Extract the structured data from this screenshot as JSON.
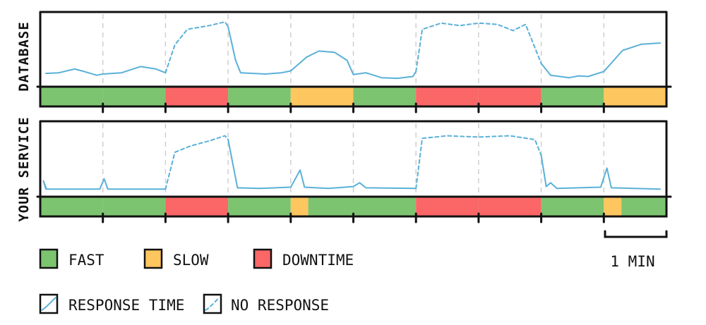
{
  "panels": [
    {
      "id": "database",
      "label": "DATABASE",
      "status_strip": [
        "fast",
        "fast",
        "downtime",
        "fast",
        "slow",
        "fast",
        "downtime",
        "downtime",
        "fast",
        "slow"
      ],
      "response_time": [
        [
          0.0,
          0.09
        ],
        [
          0.3,
          0.1
        ],
        [
          0.55,
          0.16
        ],
        [
          0.7,
          0.12
        ],
        [
          0.9,
          0.06
        ],
        [
          1.0,
          0.08
        ],
        [
          1.3,
          0.1
        ],
        [
          1.6,
          0.2
        ],
        [
          1.85,
          0.16
        ],
        [
          2.0,
          0.1
        ]
      ],
      "no_response": [
        [
          2.0,
          0.1
        ],
        [
          2.15,
          0.55
        ],
        [
          2.35,
          0.8
        ],
        [
          2.7,
          0.86
        ],
        [
          2.95,
          0.92
        ],
        [
          3.0,
          0.84
        ]
      ],
      "response_time_2": [
        [
          3.0,
          0.84
        ],
        [
          3.12,
          0.3
        ],
        [
          3.2,
          0.1
        ],
        [
          3.6,
          0.08
        ],
        [
          3.85,
          0.1
        ],
        [
          4.0,
          0.13
        ],
        [
          4.25,
          0.35
        ],
        [
          4.45,
          0.45
        ],
        [
          4.7,
          0.43
        ],
        [
          4.9,
          0.3
        ],
        [
          5.0,
          0.07
        ],
        [
          5.2,
          0.1
        ],
        [
          5.45,
          0.02
        ],
        [
          5.7,
          0.01
        ],
        [
          5.95,
          0.04
        ],
        [
          6.0,
          0.12
        ]
      ],
      "no_response_2": [
        [
          6.0,
          0.12
        ],
        [
          6.1,
          0.8
        ],
        [
          6.4,
          0.9
        ],
        [
          6.7,
          0.86
        ],
        [
          7.0,
          0.9
        ],
        [
          7.3,
          0.88
        ],
        [
          7.55,
          0.78
        ],
        [
          7.75,
          0.88
        ],
        [
          8.0,
          0.25
        ]
      ],
      "response_time_3": [
        [
          8.0,
          0.25
        ],
        [
          8.15,
          0.06
        ],
        [
          8.45,
          0.02
        ],
        [
          8.6,
          0.05
        ],
        [
          8.75,
          0.04
        ],
        [
          9.0,
          0.12
        ],
        [
          9.3,
          0.46
        ],
        [
          9.6,
          0.56
        ],
        [
          9.9,
          0.58
        ]
      ]
    },
    {
      "id": "your-service",
      "label": "YOUR SERVICE",
      "status_strip": [
        "fast",
        "fast",
        "downtime",
        "fast",
        "slow",
        "fast",
        "fast",
        "fast",
        "downtime",
        "downtime",
        "fast",
        "slow",
        "fast"
      ],
      "response_time": [
        [
          0.0,
          0.02
        ],
        [
          0.05,
          0.15
        ],
        [
          0.1,
          0.02
        ],
        [
          0.95,
          0.02
        ],
        [
          1.02,
          0.18
        ],
        [
          1.08,
          0.02
        ],
        [
          2.0,
          0.02
        ]
      ],
      "no_response": [
        [
          2.0,
          0.02
        ],
        [
          2.15,
          0.6
        ],
        [
          2.4,
          0.7
        ],
        [
          2.7,
          0.78
        ],
        [
          2.95,
          0.86
        ],
        [
          3.0,
          0.8
        ]
      ],
      "response_time_2": [
        [
          3.0,
          0.8
        ],
        [
          3.15,
          0.04
        ],
        [
          3.5,
          0.03
        ],
        [
          4.0,
          0.05
        ],
        [
          4.15,
          0.32
        ],
        [
          4.22,
          0.05
        ],
        [
          4.6,
          0.03
        ],
        [
          5.0,
          0.06
        ],
        [
          5.1,
          0.12
        ],
        [
          5.2,
          0.04
        ],
        [
          6.0,
          0.03
        ]
      ],
      "no_response_2": [
        [
          6.0,
          0.03
        ],
        [
          6.1,
          0.82
        ],
        [
          6.5,
          0.86
        ],
        [
          7.0,
          0.84
        ],
        [
          7.5,
          0.86
        ],
        [
          7.9,
          0.8
        ],
        [
          8.0,
          0.55
        ]
      ],
      "response_time_3": [
        [
          8.0,
          0.55
        ],
        [
          8.08,
          0.06
        ],
        [
          8.15,
          0.12
        ],
        [
          8.25,
          0.03
        ],
        [
          8.95,
          0.05
        ],
        [
          9.05,
          0.35
        ],
        [
          9.12,
          0.04
        ],
        [
          9.9,
          0.02
        ]
      ]
    }
  ],
  "status_colors": {
    "fast": "#7cc46f",
    "slow": "#fdc65e",
    "downtime": "#fb6666"
  },
  "line_color": "#5ab0d8",
  "legend": {
    "fast": "FAST",
    "slow": "SLOW",
    "downtime": "DOWNTIME",
    "response_time": "RESPONSE TIME",
    "no_response": "NO RESPONSE",
    "scale": "1 MIN"
  }
}
